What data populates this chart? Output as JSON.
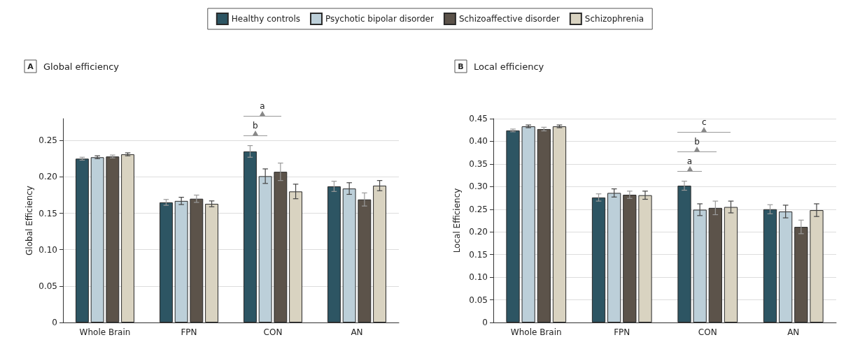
{
  "chart_data": [
    {
      "type": "bar",
      "title": "Global efficiency",
      "ylabel": "Global Efficiency",
      "categories": [
        "Whole Brain",
        "FPN",
        "CON",
        "AN"
      ],
      "series": [
        {
          "name": "Healthy controls",
          "color": "#2d5563",
          "values": [
            0.225,
            0.165,
            0.235,
            0.187
          ],
          "errors": [
            0.002,
            0.004,
            0.008,
            0.007
          ]
        },
        {
          "name": "Psychotic bipolar disorder",
          "color": "#bccfd9",
          "values": [
            0.227,
            0.167,
            0.201,
            0.184
          ],
          "errors": [
            0.002,
            0.005,
            0.01,
            0.008
          ]
        },
        {
          "name": "Schizoaffective disorder",
          "color": "#5c534a",
          "values": [
            0.228,
            0.17,
            0.207,
            0.169
          ],
          "errors": [
            0.002,
            0.005,
            0.012,
            0.009
          ]
        },
        {
          "name": "Schizophrenia",
          "color": "#d9d3c1",
          "values": [
            0.231,
            0.163,
            0.18,
            0.188
          ],
          "errors": [
            0.002,
            0.004,
            0.01,
            0.007
          ]
        }
      ],
      "ylim": [
        0,
        0.28
      ],
      "yticks": [
        0,
        {
          "value": 0.05,
          "label": "0.05"
        },
        {
          "value": 0.1,
          "label": "0.10"
        },
        {
          "value": 0.15,
          "label": "0.15"
        },
        {
          "value": 0.2,
          "label": "0.20"
        },
        0.25
      ],
      "grid": "y",
      "legend": "top",
      "annotations": [
        "A",
        "b",
        "a"
      ]
    },
    {
      "type": "bar",
      "title": "Local efficiency",
      "ylabel": "Local Efficiency",
      "categories": [
        "Whole Brain",
        "FPN",
        "CON",
        "AN"
      ],
      "series": [
        {
          "color": "#2d5563",
          "values": [
            0.424,
            0.276,
            0.302,
            0.25
          ],
          "errors": [
            0.003,
            0.008,
            0.01,
            0.01
          ]
        },
        {
          "color": "#bccfd9",
          "values": [
            0.433,
            0.286,
            0.249,
            0.245
          ],
          "errors": [
            0.003,
            0.009,
            0.013,
            0.014
          ]
        },
        {
          "color": "#5c534a",
          "values": [
            0.427,
            0.282,
            0.253,
            0.211
          ],
          "errors": [
            0.004,
            0.008,
            0.015,
            0.015
          ]
        },
        {
          "color": "#d9d3c1",
          "values": [
            0.433,
            0.281,
            0.255,
            0.248
          ],
          "errors": [
            0.003,
            0.009,
            0.013,
            0.014
          ]
        }
      ],
      "ylim": [
        0,
        0.45
      ],
      "yticks": [
        0,
        {
          "value": 0.05,
          "label": "0.05"
        },
        {
          "value": 0.1,
          "label": "0.10"
        },
        {
          "value": 0.15,
          "label": "0.15"
        },
        {
          "value": 0.2,
          "label": "0.20"
        },
        0.25,
        {
          "value": 0.3,
          "label": "0.30"
        },
        0.35,
        {
          "value": 0.4,
          "label": "0.40"
        },
        0.45
      ],
      "grid": "y",
      "annotations": [
        "B",
        "a",
        "b",
        "c"
      ]
    }
  ]
}
